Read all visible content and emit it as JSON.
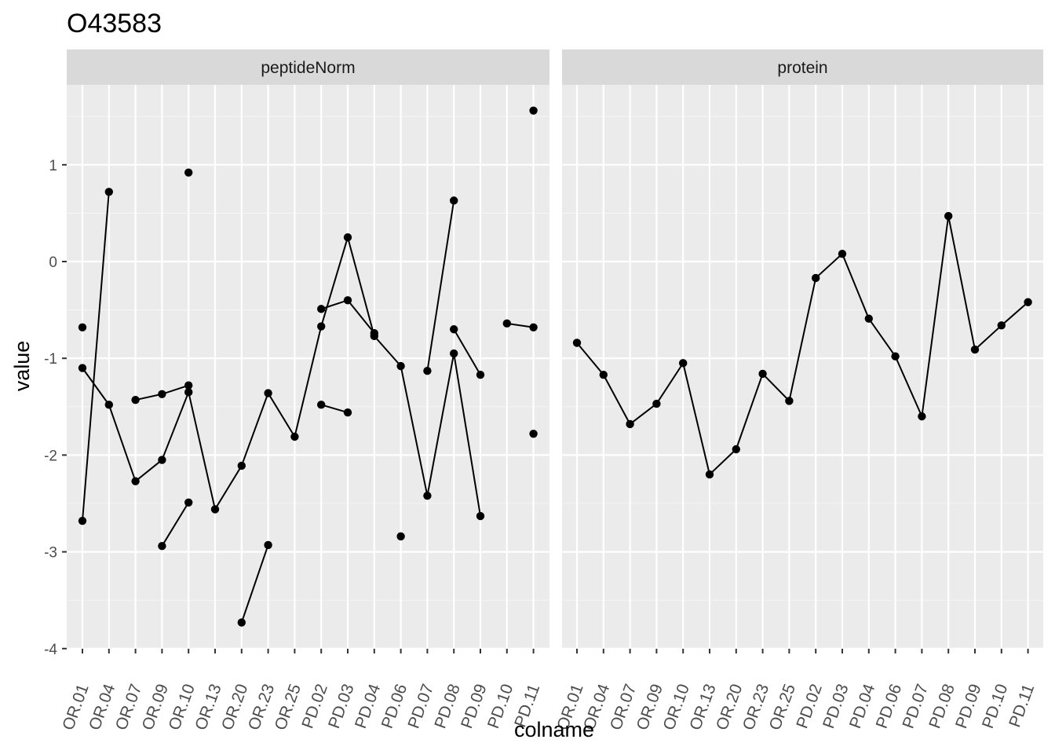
{
  "chart_data": {
    "type": "line",
    "title": "O43583",
    "xlabel": "colname",
    "ylabel": "value",
    "ylim": [
      -4,
      1.8
    ],
    "yticks": [
      -4,
      -3,
      -2,
      -1,
      0,
      1
    ],
    "ytick_labels": [
      "-4",
      "-3",
      "-2",
      "-1",
      "0",
      "1"
    ],
    "grid": true,
    "categories": [
      "OR.01",
      "OR.04",
      "OR.07",
      "OR.09",
      "OR.10",
      "OR.13",
      "OR.20",
      "OR.23",
      "OR.25",
      "PD.02",
      "PD.03",
      "PD.04",
      "PD.06",
      "PD.07",
      "PD.08",
      "PD.09",
      "PD.10",
      "PD.11"
    ],
    "panels": [
      {
        "name": "peptideNorm",
        "series": [
          {
            "values": [
              -1.1,
              -1.48,
              -2.27,
              -2.05,
              -1.35,
              -2.56,
              -2.11,
              -1.36,
              -1.81,
              -0.67,
              0.25,
              -0.77,
              -1.08,
              -2.42,
              -0.95,
              -2.63,
              null,
              -1.78
            ]
          },
          {
            "values": [
              -0.68,
              null,
              -1.43,
              -1.37,
              -1.28,
              null,
              -3.73,
              -2.93,
              null,
              -0.49,
              -0.4,
              -0.74,
              null,
              -1.13,
              0.63,
              null,
              -0.64,
              -0.68
            ]
          },
          {
            "values": [
              -2.68,
              0.72,
              null,
              -2.94,
              -2.49,
              null,
              null,
              null,
              null,
              -1.48,
              -1.56,
              null,
              -2.84,
              null,
              -0.7,
              -1.17,
              null,
              1.56
            ]
          },
          {
            "values": [
              null,
              null,
              null,
              null,
              0.92,
              null,
              null,
              null,
              null,
              null,
              null,
              null,
              null,
              null,
              null,
              null,
              null,
              null
            ]
          }
        ]
      },
      {
        "name": "protein",
        "series": [
          {
            "values": [
              -0.84,
              -1.17,
              -1.68,
              -1.47,
              -1.05,
              -2.2,
              -1.94,
              -1.16,
              -1.44,
              -0.17,
              0.08,
              -0.59,
              -0.98,
              -1.6,
              0.47,
              -0.91,
              -0.66,
              -0.42
            ]
          }
        ]
      }
    ]
  }
}
